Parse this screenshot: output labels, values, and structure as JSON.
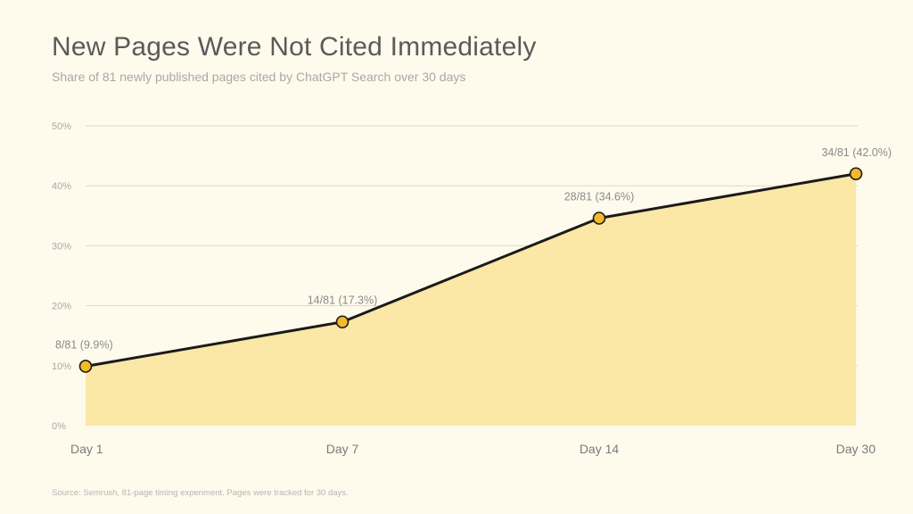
{
  "title": "New Pages Were Not Cited Immediately",
  "subtitle": "Share of 81 newly published pages cited by ChatGPT Search over 30 days",
  "source": "Source: Semrush, 81-page timing experiment. Pages were tracked for 30 days.",
  "colors": {
    "area": "#FBE7A6",
    "line": "#1A1A1A",
    "marker": "#F2B92B",
    "grid": "#DDDAC8",
    "background": "#FEFBEC"
  },
  "chart_data": {
    "type": "area",
    "title": "New Pages Were Not Cited Immediately",
    "subtitle": "Share of 81 newly published pages cited by ChatGPT Search over 30 days",
    "xlabel": "",
    "ylabel": "",
    "categories": [
      "Day 1",
      "Day 7",
      "Day 14",
      "Day 30"
    ],
    "values": [
      9.9,
      17.3,
      34.6,
      42.0
    ],
    "data_labels": [
      "8/81 (9.9%)",
      "14/81 (17.3%)",
      "28/81 (34.6%)",
      "34/81 (42.0%)"
    ],
    "ylim": [
      0,
      50
    ],
    "y_ticks": [
      0,
      10,
      20,
      30,
      40,
      50
    ],
    "y_tick_labels": [
      "0%",
      "10%",
      "20%",
      "30%",
      "40%",
      "50%"
    ],
    "grid": true,
    "legend": "none"
  }
}
